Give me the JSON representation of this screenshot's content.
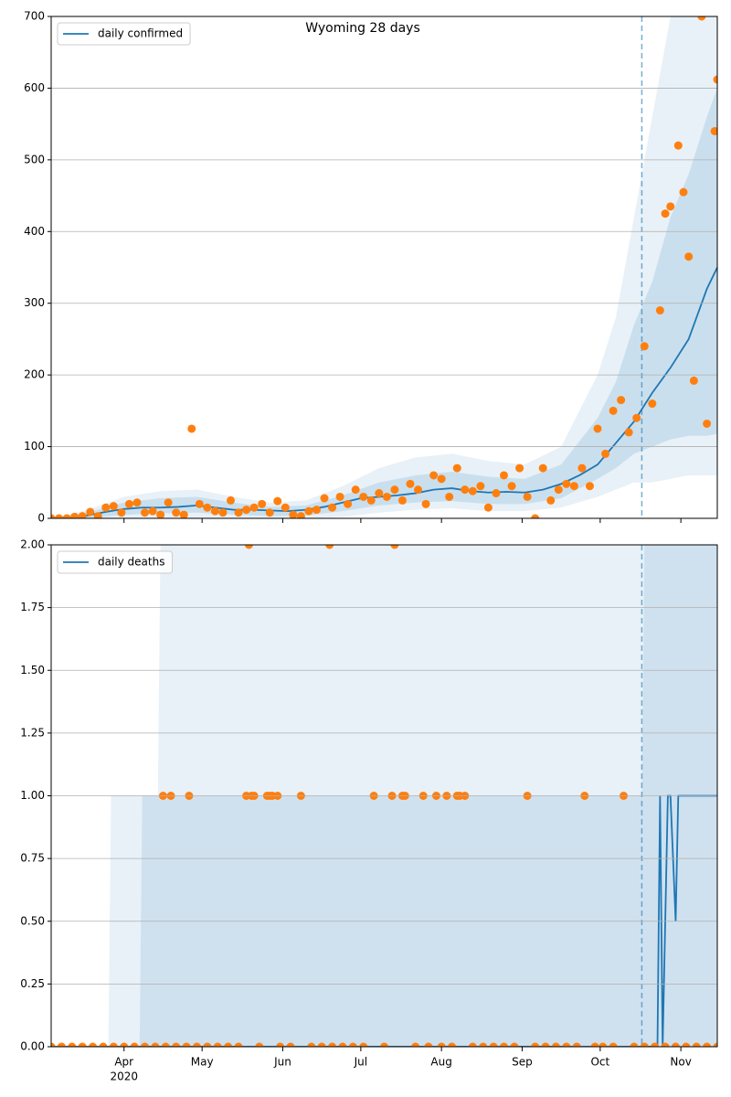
{
  "chart_data": [
    {
      "type": "line",
      "title": "Wyoming 28 days",
      "legend": "upper left",
      "grid": true,
      "xlim": [
        "2020-03-04",
        "2020-11-15"
      ],
      "ylim": [
        0,
        700
      ],
      "yticks": [
        0,
        100,
        200,
        300,
        400,
        500,
        600,
        700
      ],
      "xticks": [
        "2020-04-01",
        "2020-05-01",
        "2020-06-01",
        "2020-07-01",
        "2020-08-01",
        "2020-09-01",
        "2020-10-01",
        "2020-11-01"
      ],
      "vline": "2020-10-17",
      "bands": [
        {
          "color": "#1f77b4",
          "opacity": 0.1,
          "x": [
            "2020-03-04",
            "2020-03-18",
            "2020-04-01",
            "2020-04-15",
            "2020-04-29",
            "2020-05-13",
            "2020-05-27",
            "2020-06-10",
            "2020-06-24",
            "2020-07-08",
            "2020-07-22",
            "2020-08-05",
            "2020-08-19",
            "2020-09-02",
            "2020-09-16",
            "2020-09-30",
            "2020-10-07",
            "2020-10-14",
            "2020-10-21",
            "2020-10-28",
            "2020-11-04",
            "2020-11-11",
            "2020-11-15"
          ],
          "upper": [
            0,
            12,
            30,
            38,
            40,
            30,
            22,
            25,
            45,
            70,
            85,
            90,
            80,
            75,
            100,
            200,
            280,
            420,
            560,
            700,
            700,
            700,
            700
          ],
          "lower": [
            0,
            0,
            0,
            0,
            0,
            0,
            0,
            0,
            2,
            8,
            12,
            14,
            10,
            10,
            15,
            30,
            40,
            50,
            50,
            55,
            60,
            60,
            60
          ]
        },
        {
          "color": "#1f77b4",
          "opacity": 0.15,
          "x": [
            "2020-03-04",
            "2020-03-18",
            "2020-04-01",
            "2020-04-15",
            "2020-04-29",
            "2020-05-13",
            "2020-05-27",
            "2020-06-10",
            "2020-06-24",
            "2020-07-08",
            "2020-07-22",
            "2020-08-05",
            "2020-08-19",
            "2020-09-02",
            "2020-09-16",
            "2020-09-30",
            "2020-10-07",
            "2020-10-14",
            "2020-10-21",
            "2020-10-28",
            "2020-11-04",
            "2020-11-11",
            "2020-11-15"
          ],
          "upper": [
            0,
            8,
            22,
            28,
            30,
            22,
            16,
            18,
            32,
            50,
            60,
            65,
            58,
            55,
            75,
            140,
            190,
            270,
            330,
            420,
            480,
            560,
            600
          ],
          "lower": [
            0,
            0,
            5,
            7,
            8,
            5,
            3,
            4,
            10,
            18,
            22,
            24,
            20,
            20,
            28,
            55,
            70,
            90,
            100,
            110,
            115,
            115,
            118
          ]
        }
      ],
      "series": [
        {
          "name": "daily confirmed",
          "color": "#1f77b4",
          "x": [
            "2020-03-04",
            "2020-03-11",
            "2020-03-18",
            "2020-03-25",
            "2020-04-01",
            "2020-04-08",
            "2020-04-15",
            "2020-04-22",
            "2020-04-29",
            "2020-05-06",
            "2020-05-13",
            "2020-05-20",
            "2020-05-27",
            "2020-06-03",
            "2020-06-10",
            "2020-06-17",
            "2020-06-24",
            "2020-07-01",
            "2020-07-08",
            "2020-07-15",
            "2020-07-22",
            "2020-07-29",
            "2020-08-05",
            "2020-08-12",
            "2020-08-19",
            "2020-08-26",
            "2020-09-02",
            "2020-09-09",
            "2020-09-16",
            "2020-09-23",
            "2020-09-30",
            "2020-10-07",
            "2020-10-14",
            "2020-10-21",
            "2020-10-28",
            "2020-11-04",
            "2020-11-11",
            "2020-11-15"
          ],
          "values": [
            0,
            1,
            4,
            9,
            13,
            15,
            15,
            16,
            18,
            15,
            12,
            12,
            11,
            10,
            12,
            16,
            22,
            28,
            30,
            32,
            35,
            40,
            42,
            38,
            36,
            37,
            36,
            40,
            48,
            60,
            75,
            105,
            135,
            175,
            210,
            250,
            320,
            350
          ]
        }
      ],
      "points": {
        "color": "#ff7f0e",
        "x": [
          "2020-03-04",
          "2020-03-07",
          "2020-03-10",
          "2020-03-13",
          "2020-03-16",
          "2020-03-19",
          "2020-03-22",
          "2020-03-25",
          "2020-03-28",
          "2020-03-31",
          "2020-04-03",
          "2020-04-06",
          "2020-04-09",
          "2020-04-12",
          "2020-04-15",
          "2020-04-18",
          "2020-04-21",
          "2020-04-24",
          "2020-04-27",
          "2020-04-30",
          "2020-05-03",
          "2020-05-06",
          "2020-05-09",
          "2020-05-12",
          "2020-05-15",
          "2020-05-18",
          "2020-05-21",
          "2020-05-24",
          "2020-05-27",
          "2020-05-30",
          "2020-06-02",
          "2020-06-05",
          "2020-06-08",
          "2020-06-11",
          "2020-06-14",
          "2020-06-17",
          "2020-06-20",
          "2020-06-23",
          "2020-06-26",
          "2020-06-29",
          "2020-07-02",
          "2020-07-05",
          "2020-07-08",
          "2020-07-11",
          "2020-07-14",
          "2020-07-17",
          "2020-07-20",
          "2020-07-23",
          "2020-07-26",
          "2020-07-29",
          "2020-08-01",
          "2020-08-04",
          "2020-08-07",
          "2020-08-10",
          "2020-08-13",
          "2020-08-16",
          "2020-08-19",
          "2020-08-22",
          "2020-08-25",
          "2020-08-28",
          "2020-08-31",
          "2020-09-03",
          "2020-09-06",
          "2020-09-09",
          "2020-09-12",
          "2020-09-15",
          "2020-09-18",
          "2020-09-21",
          "2020-09-24",
          "2020-09-27",
          "2020-09-30",
          "2020-10-03",
          "2020-10-06",
          "2020-10-09",
          "2020-10-12",
          "2020-10-15",
          "2020-10-18",
          "2020-10-21",
          "2020-10-24",
          "2020-10-26",
          "2020-10-28",
          "2020-10-31",
          "2020-11-02",
          "2020-11-04",
          "2020-11-06",
          "2020-11-09",
          "2020-11-11",
          "2020-11-14",
          "2020-11-15"
        ],
        "values": [
          0,
          0,
          0,
          2,
          3,
          9,
          3,
          15,
          17,
          8,
          20,
          22,
          8,
          10,
          5,
          22,
          8,
          5,
          125,
          20,
          15,
          10,
          8,
          25,
          8,
          12,
          15,
          20,
          8,
          24,
          15,
          5,
          3,
          10,
          12,
          28,
          15,
          30,
          20,
          40,
          30,
          25,
          35,
          30,
          40,
          25,
          48,
          40,
          20,
          60,
          55,
          30,
          70,
          40,
          38,
          45,
          15,
          35,
          60,
          45,
          70,
          30,
          0,
          70,
          25,
          40,
          48,
          45,
          70,
          45,
          125,
          90,
          150,
          165,
          120,
          140,
          240,
          160,
          290,
          425,
          435,
          520,
          455,
          365,
          192,
          700,
          132,
          540,
          612
        ]
      }
    },
    {
      "type": "line",
      "legend": "upper left",
      "grid": true,
      "xlim": [
        "2020-03-04",
        "2020-11-15"
      ],
      "ylim": [
        0,
        2
      ],
      "yticks": [
        {
          "value": 0,
          "label": "0.00"
        },
        {
          "value": 0.25,
          "label": "0.25"
        },
        {
          "value": 0.5,
          "label": "0.50"
        },
        {
          "value": 0.75,
          "label": "0.75"
        },
        {
          "value": 1,
          "label": "1.00"
        },
        {
          "value": 1.25,
          "label": "1.25"
        },
        {
          "value": 1.5,
          "label": "1.50"
        },
        {
          "value": 1.75,
          "label": "1.75"
        },
        {
          "value": 2,
          "label": "2.00"
        }
      ],
      "xticks": [
        {
          "value": "2020-04-01",
          "label": "Apr"
        },
        {
          "value": "2020-05-01",
          "label": "May"
        },
        {
          "value": "2020-06-01",
          "label": "Jun"
        },
        {
          "value": "2020-07-01",
          "label": "Jul"
        },
        {
          "value": "2020-08-01",
          "label": "Aug"
        },
        {
          "value": "2020-09-01",
          "label": "Sep"
        },
        {
          "value": "2020-10-01",
          "label": "Oct"
        },
        {
          "value": "2020-11-01",
          "label": "Nov"
        }
      ],
      "year_label": "2020",
      "vline": "2020-10-17",
      "bands": [
        {
          "color": "#1f77b4",
          "opacity": 0.1,
          "x": [
            "2020-03-04",
            "2020-03-26",
            "2020-03-27",
            "2020-04-14",
            "2020-04-15",
            "2020-11-15"
          ],
          "upper": [
            0,
            0,
            1,
            1,
            2,
            2
          ],
          "lower": [
            0,
            0,
            0,
            0,
            0,
            0
          ]
        },
        {
          "color": "#1f77b4",
          "opacity": 0.12,
          "x": [
            "2020-03-04",
            "2020-04-07",
            "2020-04-08",
            "2020-10-17",
            "2020-10-18",
            "2020-11-15"
          ],
          "upper": [
            0,
            0,
            1,
            1,
            2,
            2
          ],
          "lower": [
            0,
            0,
            0,
            0,
            0,
            0
          ]
        }
      ],
      "series": [
        {
          "name": "daily deaths",
          "color": "#1f77b4",
          "x": [
            "2020-03-04",
            "2020-10-23",
            "2020-10-24",
            "2020-10-25",
            "2020-10-27",
            "2020-10-28",
            "2020-10-30",
            "2020-10-31",
            "2020-11-15"
          ],
          "values": [
            0,
            0,
            1,
            0,
            1,
            1,
            0.5,
            1,
            1
          ]
        }
      ],
      "points": {
        "color": "#ff7f0e",
        "x": [
          "2020-04-16",
          "2020-04-19",
          "2020-04-26",
          "2020-05-18",
          "2020-05-20",
          "2020-05-21",
          "2020-05-26",
          "2020-05-27",
          "2020-05-28",
          "2020-05-30",
          "2020-06-08",
          "2020-07-06",
          "2020-07-13",
          "2020-07-17",
          "2020-07-18",
          "2020-07-25",
          "2020-07-30",
          "2020-08-03",
          "2020-08-07",
          "2020-08-08",
          "2020-08-10",
          "2020-09-03",
          "2020-09-25",
          "2020-10-10",
          "2020-05-19",
          "2020-06-19",
          "2020-07-14",
          "2020-03-04",
          "2020-03-08",
          "2020-03-12",
          "2020-03-16",
          "2020-03-20",
          "2020-03-24",
          "2020-03-28",
          "2020-04-01",
          "2020-04-05",
          "2020-04-09",
          "2020-04-13",
          "2020-04-17",
          "2020-04-21",
          "2020-04-25",
          "2020-04-29",
          "2020-05-03",
          "2020-05-07",
          "2020-05-11",
          "2020-05-15",
          "2020-05-23",
          "2020-05-31",
          "2020-06-04",
          "2020-06-12",
          "2020-06-16",
          "2020-06-20",
          "2020-06-24",
          "2020-06-28",
          "2020-07-02",
          "2020-07-10",
          "2020-07-22",
          "2020-07-27",
          "2020-08-01",
          "2020-08-05",
          "2020-08-13",
          "2020-08-17",
          "2020-08-21",
          "2020-08-25",
          "2020-08-29",
          "2020-09-06",
          "2020-09-10",
          "2020-09-14",
          "2020-09-18",
          "2020-09-22",
          "2020-09-29",
          "2020-10-02",
          "2020-10-06",
          "2020-10-14",
          "2020-10-18",
          "2020-10-22",
          "2020-10-26",
          "2020-10-30",
          "2020-11-03",
          "2020-11-07",
          "2020-11-11",
          "2020-11-15"
        ],
        "values": [
          1,
          1,
          1,
          1,
          1,
          1,
          1,
          1,
          1,
          1,
          1,
          1,
          1,
          1,
          1,
          1,
          1,
          1,
          1,
          1,
          1,
          1,
          1,
          1,
          2,
          2,
          2,
          0,
          0,
          0,
          0,
          0,
          0,
          0,
          0,
          0,
          0,
          0,
          0,
          0,
          0,
          0,
          0,
          0,
          0,
          0,
          0,
          0,
          0,
          0,
          0,
          0,
          0,
          0,
          0,
          0,
          0,
          0,
          0,
          0,
          0,
          0,
          0,
          0,
          0,
          0,
          0,
          0,
          0,
          0,
          0,
          0,
          0,
          0,
          0,
          0,
          0,
          0,
          0,
          0,
          0,
          0
        ]
      }
    }
  ]
}
